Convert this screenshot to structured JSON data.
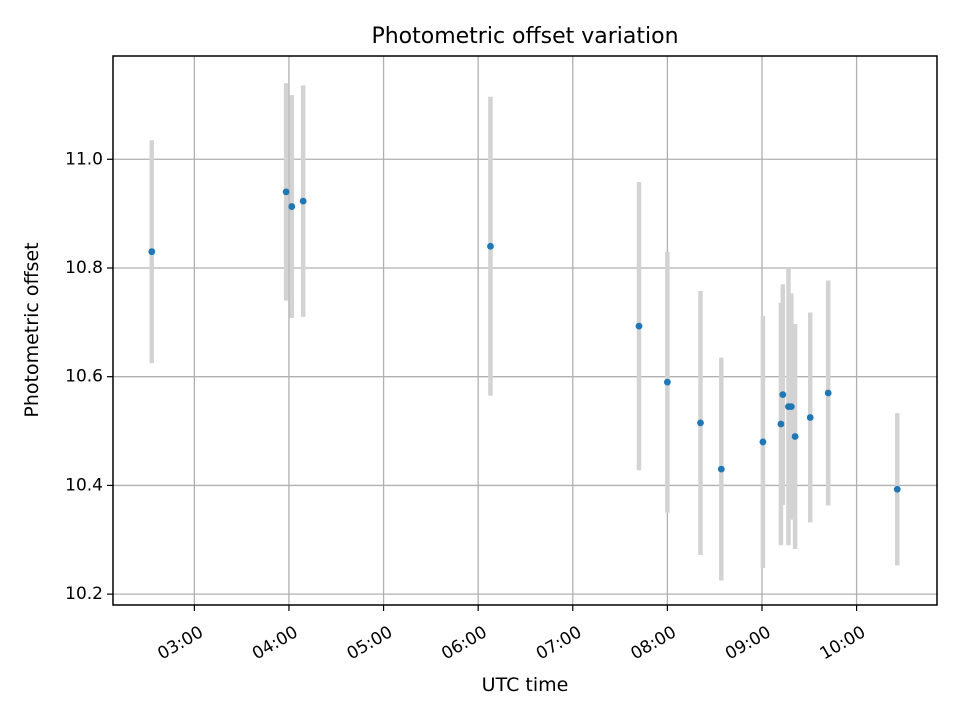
{
  "chart_data": {
    "type": "scatter",
    "title": "Photometric offset variation",
    "xlabel": "UTC time",
    "ylabel": "Photometric offset",
    "x_unit": "UTC time (hours)",
    "xlim": [
      2.14,
      10.85
    ],
    "ylim": [
      10.18,
      11.19
    ],
    "grid": true,
    "marker_color": "#1f77b4",
    "errorbar_color": "#d3d3d3",
    "x_ticks": [
      {
        "value": 3,
        "label": "03:00"
      },
      {
        "value": 4,
        "label": "04:00"
      },
      {
        "value": 5,
        "label": "05:00"
      },
      {
        "value": 6,
        "label": "06:00"
      },
      {
        "value": 7,
        "label": "07:00"
      },
      {
        "value": 8,
        "label": "08:00"
      },
      {
        "value": 9,
        "label": "09:00"
      },
      {
        "value": 10,
        "label": "10:00"
      }
    ],
    "y_ticks": [
      {
        "value": 10.2,
        "label": "10.2"
      },
      {
        "value": 10.4,
        "label": "10.4"
      },
      {
        "value": 10.6,
        "label": "10.6"
      },
      {
        "value": 10.8,
        "label": "10.8"
      },
      {
        "value": 11.0,
        "label": "11.0"
      }
    ],
    "points": [
      {
        "x": 2.55,
        "y": 10.83,
        "err": 0.205
      },
      {
        "x": 3.97,
        "y": 10.94,
        "err": 0.2
      },
      {
        "x": 4.03,
        "y": 10.913,
        "err": 0.205
      },
      {
        "x": 4.15,
        "y": 10.923,
        "err": 0.213
      },
      {
        "x": 6.13,
        "y": 10.84,
        "err": 0.275
      },
      {
        "x": 7.7,
        "y": 10.693,
        "err": 0.265
      },
      {
        "x": 8.0,
        "y": 10.59,
        "err": 0.24
      },
      {
        "x": 8.35,
        "y": 10.515,
        "err": 0.243
      },
      {
        "x": 8.57,
        "y": 10.43,
        "err": 0.205
      },
      {
        "x": 9.01,
        "y": 10.48,
        "err": 0.232
      },
      {
        "x": 9.2,
        "y": 10.513,
        "err": 0.223
      },
      {
        "x": 9.22,
        "y": 10.567,
        "err": 0.203
      },
      {
        "x": 9.28,
        "y": 10.545,
        "err": 0.255
      },
      {
        "x": 9.31,
        "y": 10.545,
        "err": 0.208
      },
      {
        "x": 9.35,
        "y": 10.49,
        "err": 0.207
      },
      {
        "x": 9.51,
        "y": 10.525,
        "err": 0.193
      },
      {
        "x": 9.7,
        "y": 10.57,
        "err": 0.207
      },
      {
        "x": 10.43,
        "y": 10.393,
        "err": 0.14
      }
    ]
  }
}
